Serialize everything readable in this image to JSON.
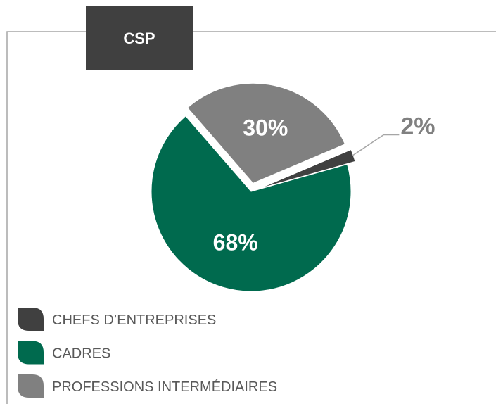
{
  "chart_data": {
    "type": "pie",
    "title": "CSP",
    "categories": [
      "CHEFS D’ENTREPRISES",
      "CADRES",
      "PROFESSIONS INTERMÉDIAIRES"
    ],
    "values": [
      2,
      68,
      30
    ],
    "value_labels": [
      "2%",
      "68%",
      "30%"
    ],
    "colors": [
      "#404040",
      "#006a4e",
      "#808080"
    ],
    "legend": "bottom-left"
  }
}
